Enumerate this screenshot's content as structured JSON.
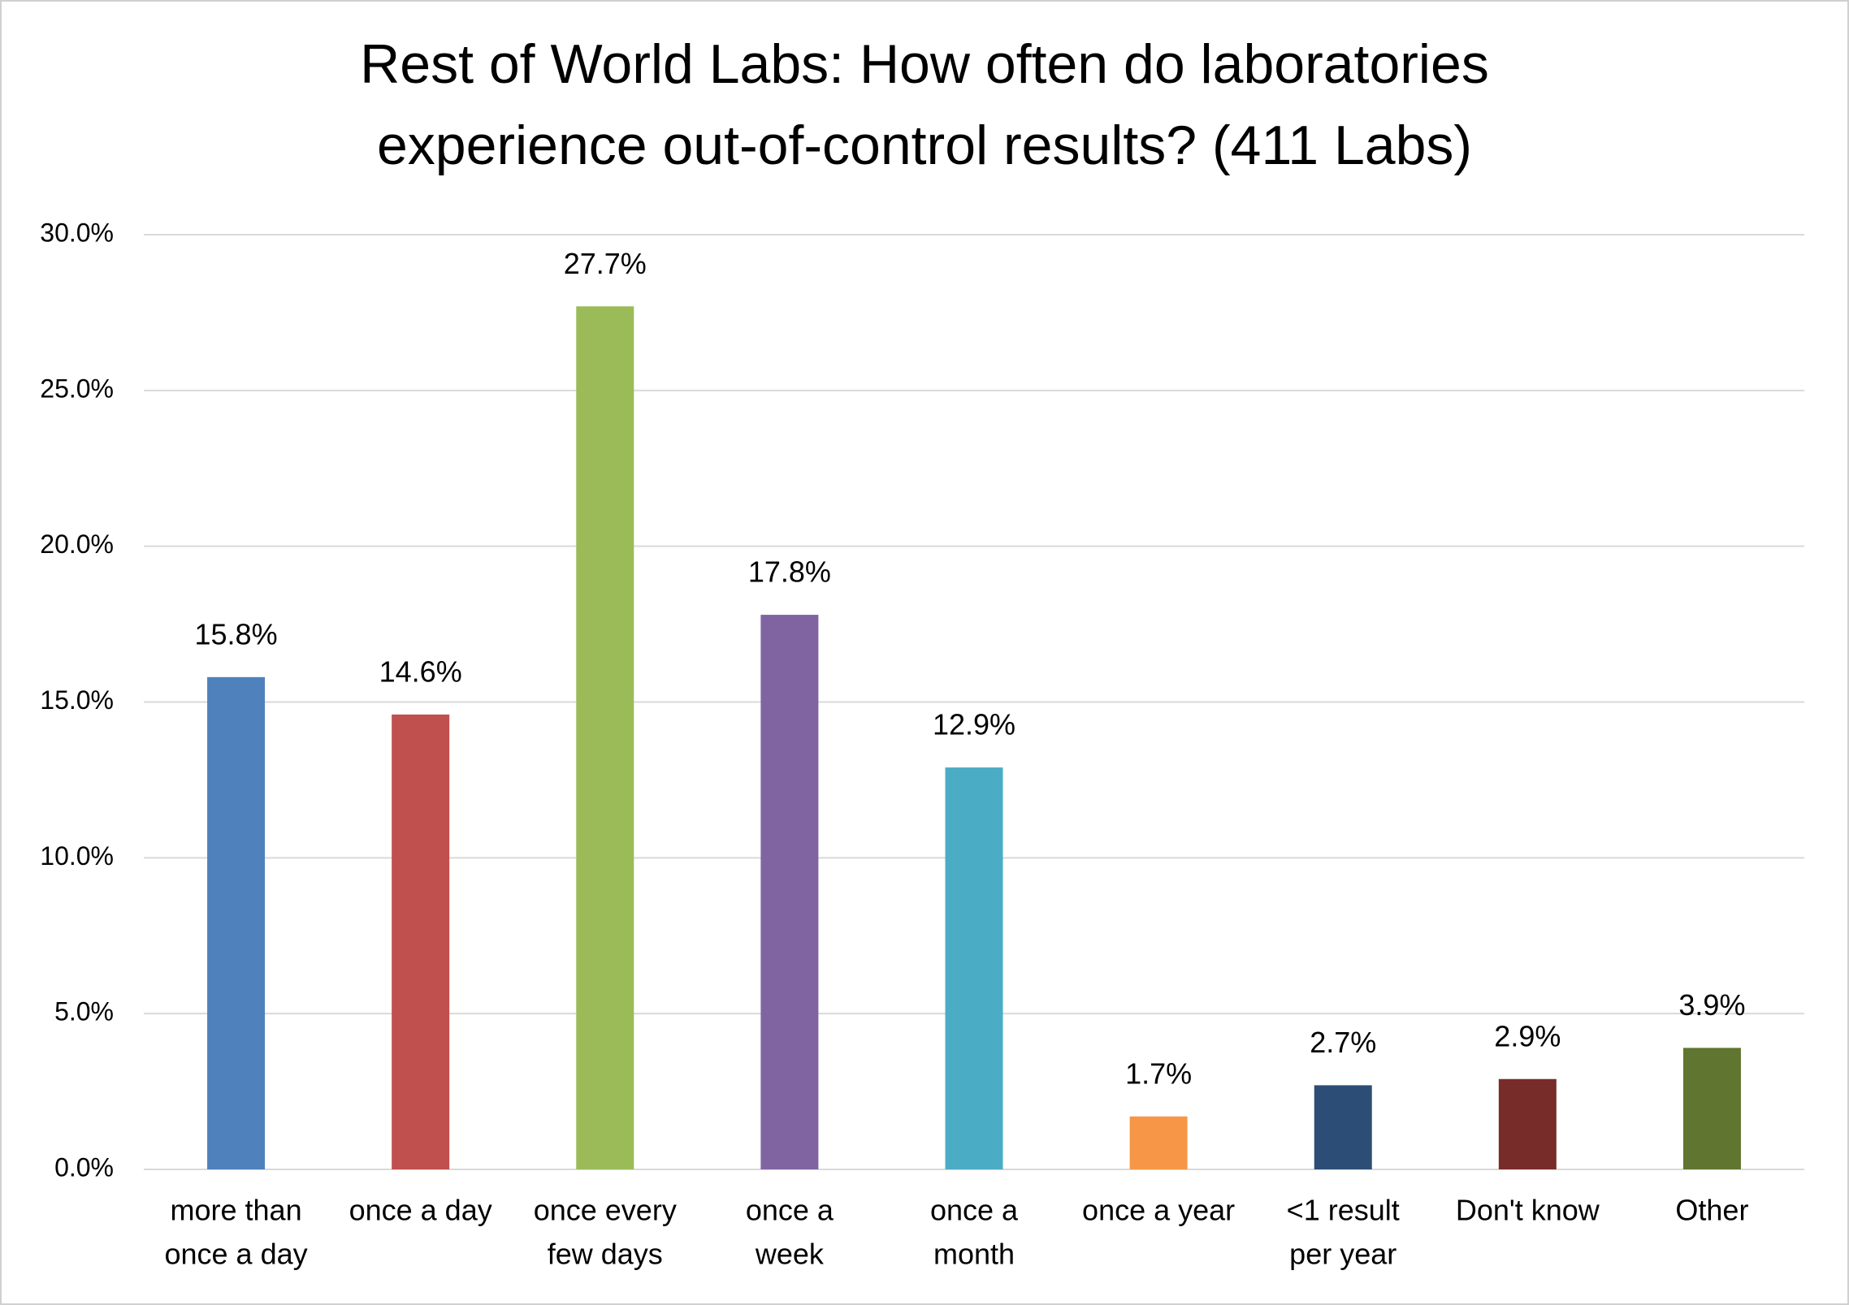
{
  "chart_data": {
    "type": "bar",
    "title": [
      "Rest of World Labs: How often do laboratories",
      "experience out-of-control results? (411 Labs)"
    ],
    "categories": [
      [
        "more than",
        "once a day"
      ],
      [
        "once a day"
      ],
      [
        "once every",
        "few days"
      ],
      [
        "once a",
        "week"
      ],
      [
        "once a",
        "month"
      ],
      [
        "once a year"
      ],
      [
        "<1 result",
        "per year"
      ],
      [
        "Don't know"
      ],
      [
        "Other"
      ]
    ],
    "values": [
      15.8,
      14.6,
      27.7,
      17.8,
      12.9,
      1.7,
      2.7,
      2.9,
      3.9
    ],
    "value_labels": [
      "15.8%",
      "14.6%",
      "27.7%",
      "17.8%",
      "12.9%",
      "1.7%",
      "2.7%",
      "2.9%",
      "3.9%"
    ],
    "colors": [
      "#4f81bd",
      "#c0504d",
      "#9bbb59",
      "#8064a2",
      "#4bacc6",
      "#f79646",
      "#2c4d75",
      "#772c2a",
      "#5f7530"
    ],
    "ylim": [
      0,
      30
    ],
    "yticks": [
      {
        "value": 0,
        "label": "0.0%"
      },
      {
        "value": 5,
        "label": "5.0%"
      },
      {
        "value": 10,
        "label": "10.0%"
      },
      {
        "value": 15,
        "label": "15.0%"
      },
      {
        "value": 20,
        "label": "20.0%"
      },
      {
        "value": 25,
        "label": "25.0%"
      },
      {
        "value": 30,
        "label": "30.0%"
      }
    ],
    "grid": true
  }
}
